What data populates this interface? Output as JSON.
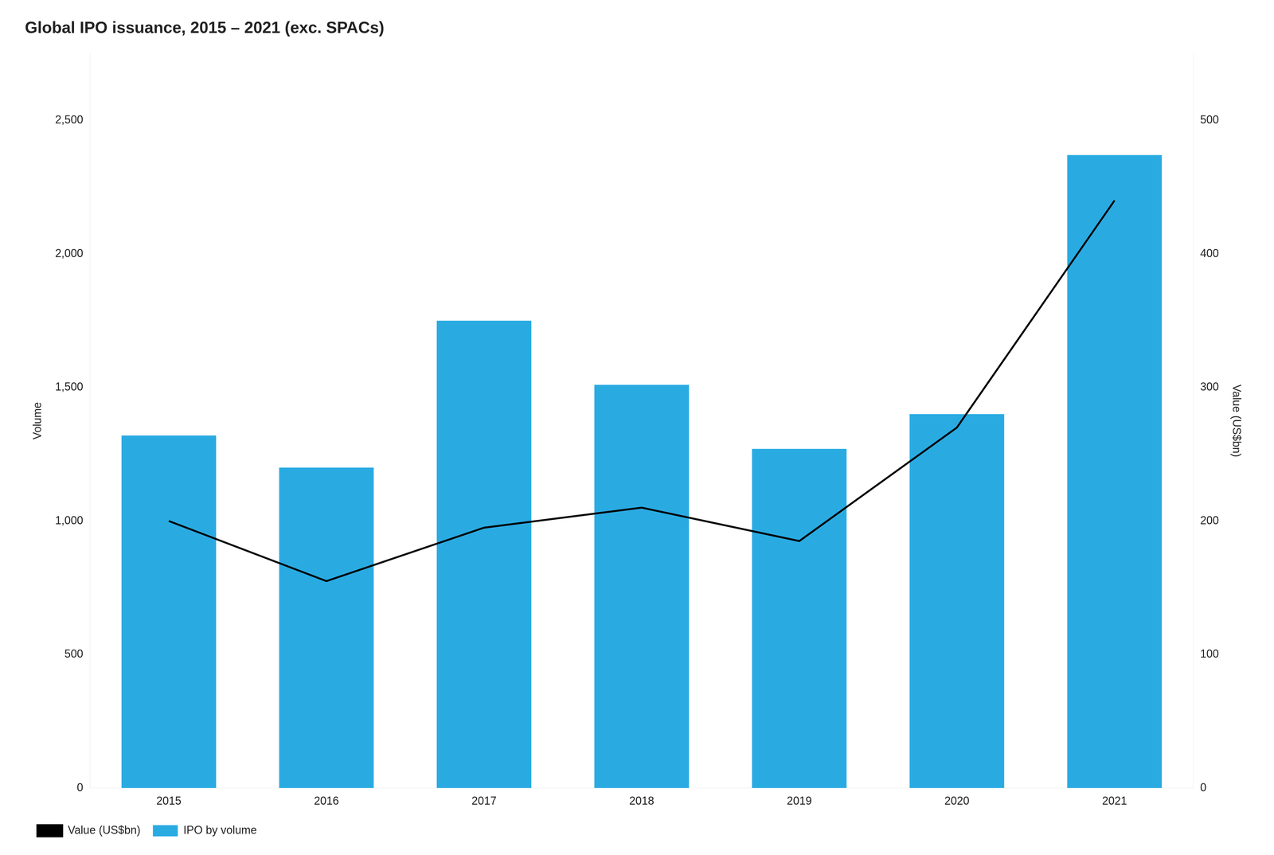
{
  "chart_data": {
    "type": "bar",
    "title": "Global IPO issuance, 2015 – 2021 (exc. SPACs)",
    "categories": [
      "2015",
      "2016",
      "2017",
      "2018",
      "2019",
      "2020",
      "2021"
    ],
    "series": [
      {
        "name": "IPO by volume",
        "color": "#29ABE2",
        "values": [
          1320,
          1200,
          1750,
          1510,
          1270,
          1400,
          2370
        ]
      },
      {
        "name": "Value (US$bn)",
        "type": "line",
        "color": "#000000",
        "marker": "none",
        "axis": "y2",
        "values": [
          200,
          155,
          195,
          210,
          185,
          270,
          440
        ]
      }
    ],
    "ylabel": "Volume",
    "y2label": "Value (US$bn)",
    "ylim": [
      0,
      2750
    ],
    "yticks": [
      0,
      500,
      {
        "value": 1000,
        "label": "1,000"
      },
      {
        "value": 1500,
        "label": "1,500"
      },
      {
        "value": 2000,
        "label": "2,000"
      },
      {
        "value": 2500,
        "label": "2,500"
      }
    ],
    "y2lim": [
      0,
      550
    ],
    "y2ticks": [
      0,
      100,
      200,
      300,
      400,
      500
    ],
    "grid": false,
    "legend": "lower left"
  }
}
